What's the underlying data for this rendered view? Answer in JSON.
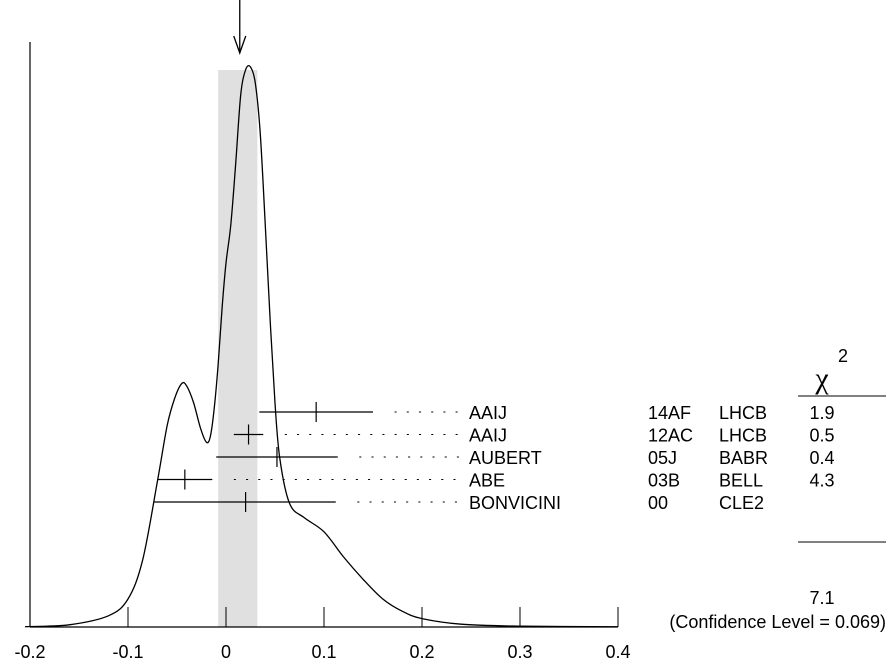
{
  "chart_data": {
    "type": "ideogram",
    "xlim": [
      -0.2,
      0.4
    ],
    "x_ticks": [
      "-0.2",
      "-0.1",
      "0",
      "0.1",
      "0.2",
      "0.3",
      "0.4"
    ],
    "x_tick_values": [
      -0.2,
      -0.1,
      0.0,
      0.1,
      0.2,
      0.3,
      0.4
    ],
    "average": 0.012,
    "band": [
      -0.008,
      0.032
    ],
    "chi2_header": "χ",
    "chi2_exponent": "2",
    "measurements": [
      {
        "name": "AAIJ",
        "ref": "14AF",
        "exp": "LHCB",
        "value": 0.092,
        "low": 0.034,
        "high": 0.15,
        "chi2": "1.9"
      },
      {
        "name": "AAIJ",
        "ref": "12AC",
        "exp": "LHCB",
        "value": 0.023,
        "low": 0.008,
        "high": 0.038,
        "chi2": "0.5"
      },
      {
        "name": "AUBERT",
        "ref": "05J",
        "exp": "BABR",
        "value": 0.052,
        "low": -0.01,
        "high": 0.114,
        "chi2": "0.4"
      },
      {
        "name": "ABE",
        "ref": "03B",
        "exp": "BELL",
        "value": -0.042,
        "low": -0.07,
        "high": -0.014,
        "chi2": "4.3"
      },
      {
        "name": "BONVICINI",
        "ref": "00",
        "exp": "CLE2",
        "value": 0.02,
        "low": -0.073,
        "high": 0.112,
        "chi2": ""
      }
    ],
    "chi2_total": "7.1",
    "confidence_text": "(Confidence Level = 0.069)",
    "curve": [
      [
        -0.205,
        0.0005
      ],
      [
        -0.16,
        0.004
      ],
      [
        -0.12,
        0.02
      ],
      [
        -0.1,
        0.05
      ],
      [
        -0.085,
        0.12
      ],
      [
        -0.07,
        0.26
      ],
      [
        -0.06,
        0.36
      ],
      [
        -0.052,
        0.41
      ],
      [
        -0.045,
        0.435
      ],
      [
        -0.04,
        0.43
      ],
      [
        -0.033,
        0.4
      ],
      [
        -0.026,
        0.355
      ],
      [
        -0.02,
        0.33
      ],
      [
        -0.016,
        0.34
      ],
      [
        -0.012,
        0.39
      ],
      [
        -0.008,
        0.47
      ],
      [
        -0.004,
        0.57
      ],
      [
        0.0,
        0.65
      ],
      [
        0.005,
        0.72
      ],
      [
        0.01,
        0.83
      ],
      [
        0.015,
        0.95
      ],
      [
        0.02,
        0.995
      ],
      [
        0.025,
        1.0
      ],
      [
        0.03,
        0.97
      ],
      [
        0.035,
        0.88
      ],
      [
        0.04,
        0.72
      ],
      [
        0.045,
        0.55
      ],
      [
        0.05,
        0.4
      ],
      [
        0.055,
        0.3
      ],
      [
        0.065,
        0.22
      ],
      [
        0.08,
        0.195
      ],
      [
        0.1,
        0.17
      ],
      [
        0.12,
        0.125
      ],
      [
        0.14,
        0.085
      ],
      [
        0.16,
        0.05
      ],
      [
        0.18,
        0.028
      ],
      [
        0.2,
        0.015
      ],
      [
        0.24,
        0.005
      ],
      [
        0.3,
        0.0015
      ],
      [
        0.4,
        0.0003
      ]
    ]
  }
}
